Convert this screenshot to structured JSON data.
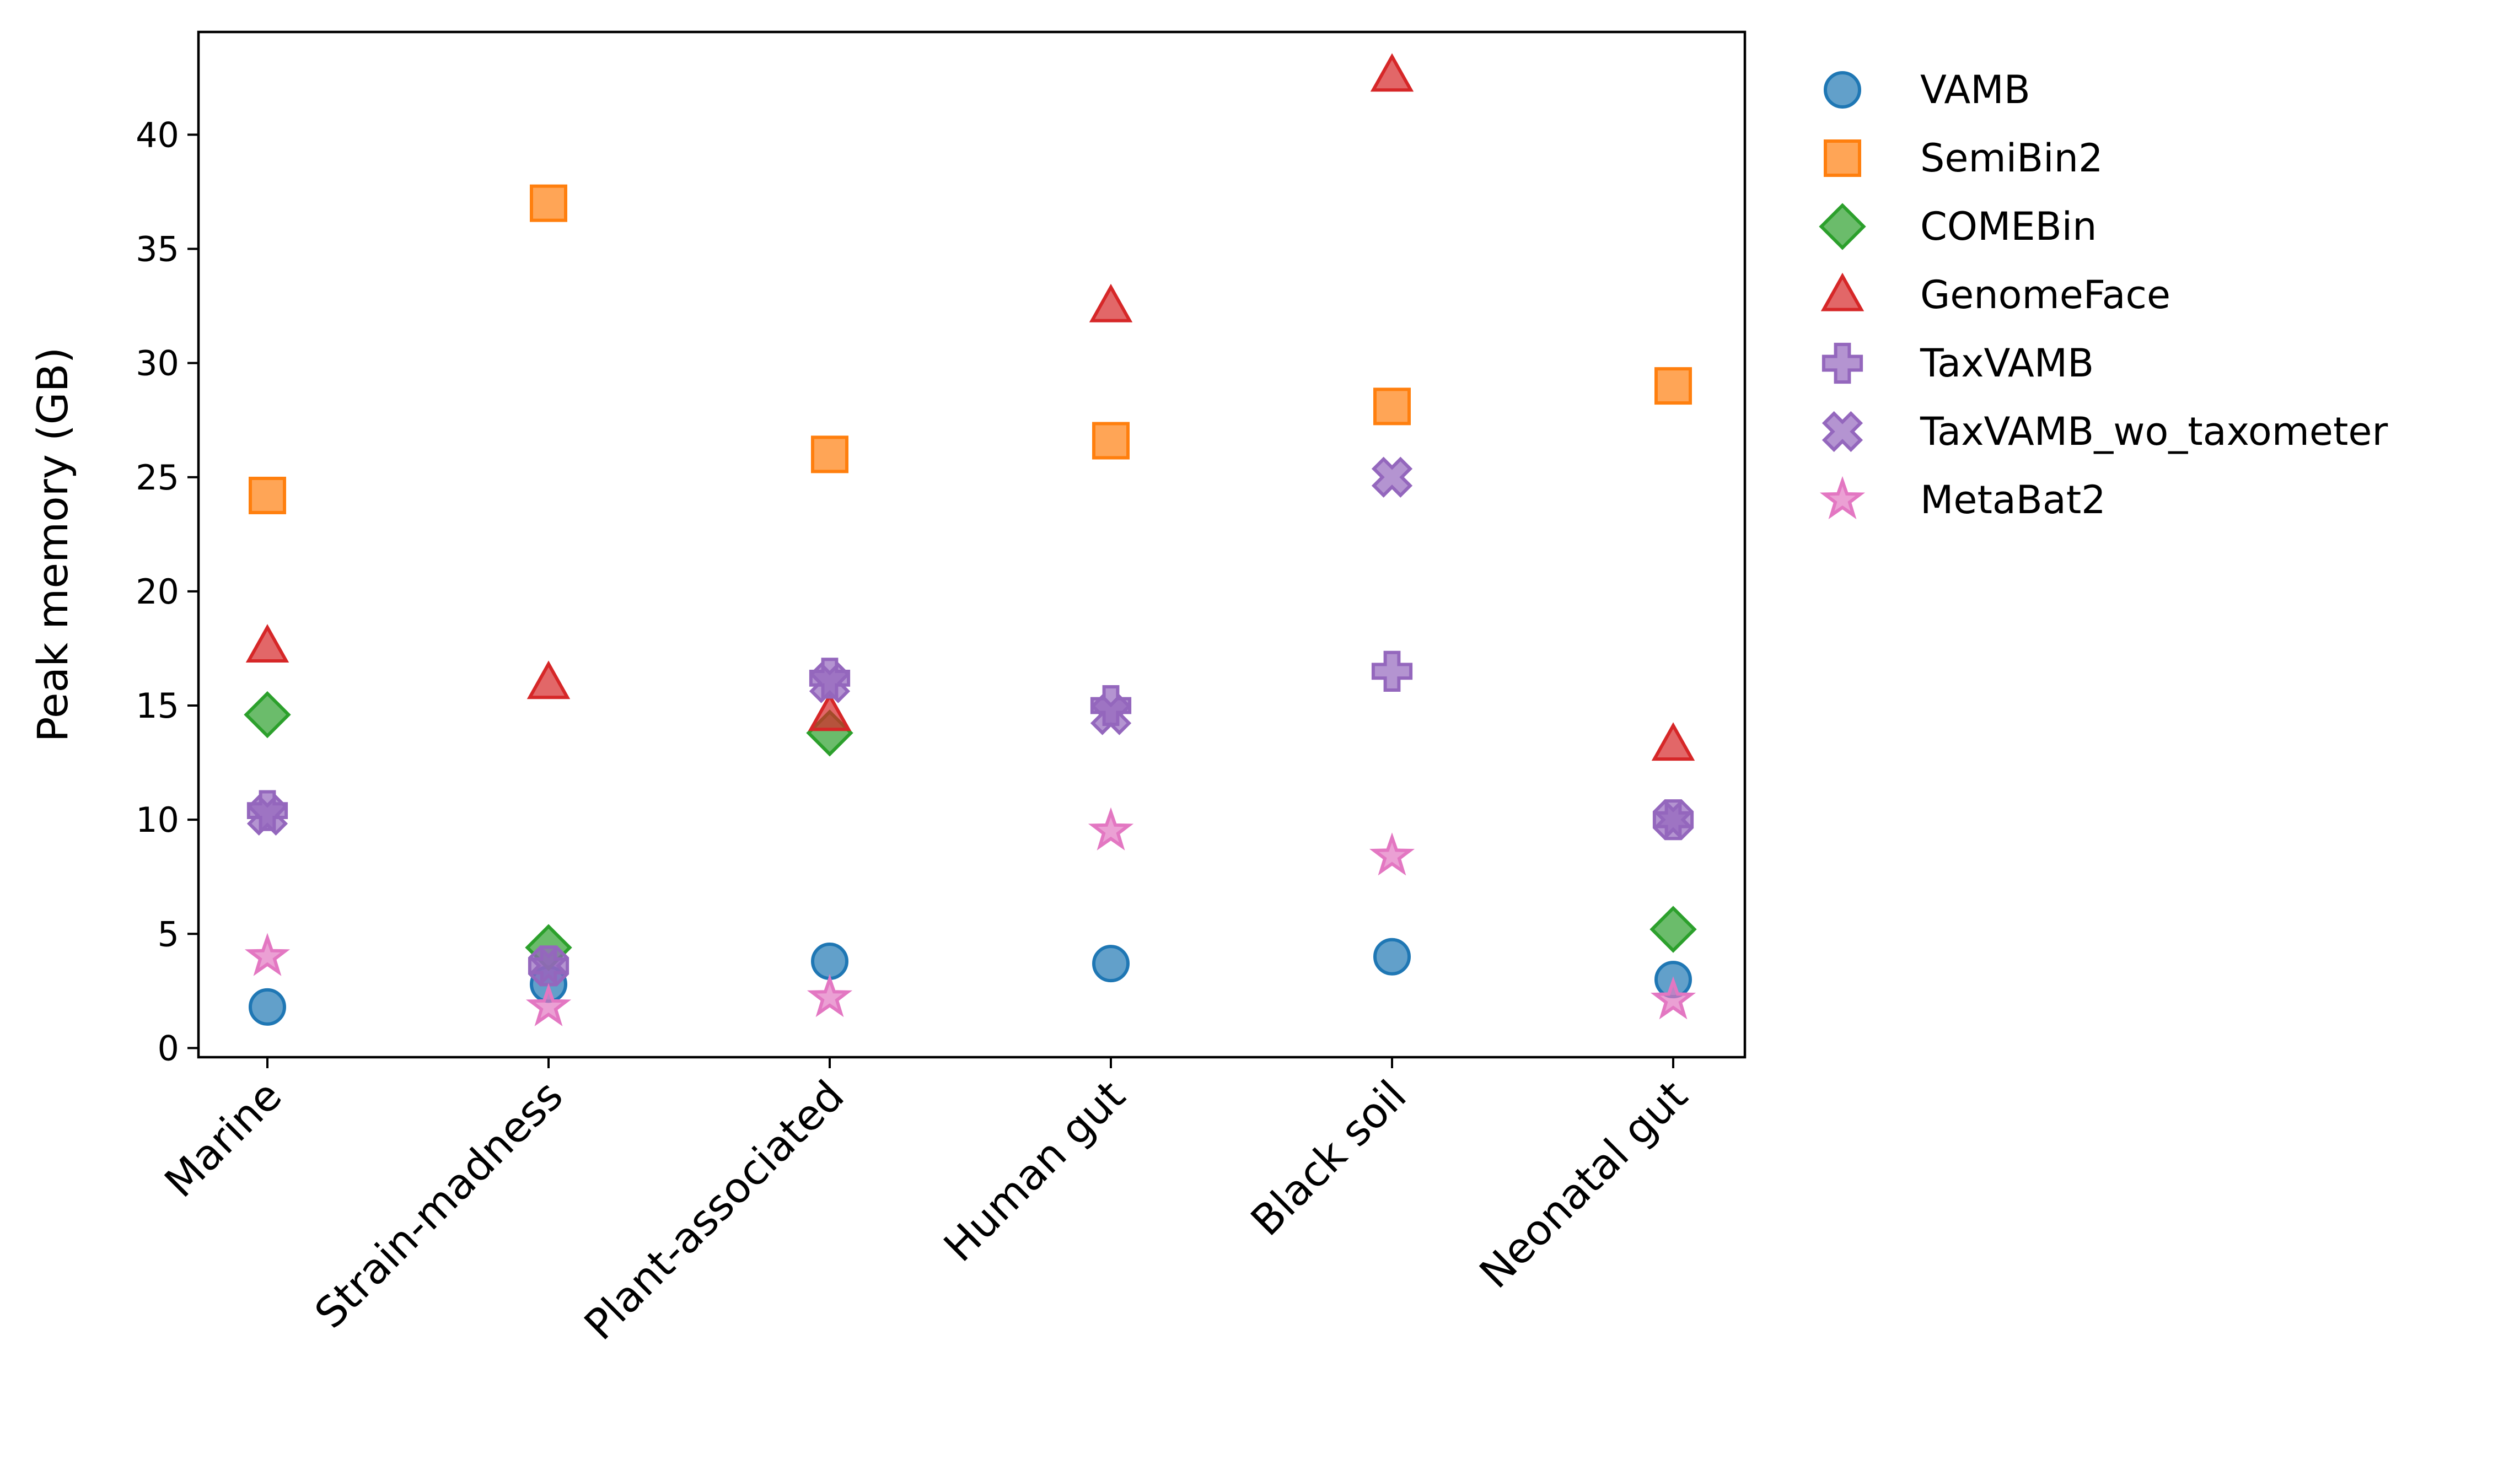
{
  "chart_data": {
    "type": "scatter",
    "title": "",
    "xlabel": "",
    "ylabel": "Peak memory (GB)",
    "categories": [
      "Marine",
      "Strain-madness",
      "Plant-associated",
      "Human gut",
      "Black soil",
      "Neonatal gut"
    ],
    "ylim": [
      -0.4,
      44.5
    ],
    "yticks": [
      0,
      5,
      10,
      15,
      20,
      25,
      30,
      35,
      40
    ],
    "grid": false,
    "legend_position": "outside-right",
    "series": [
      {
        "name": "VAMB",
        "marker": "circle",
        "color": "#1f77b4",
        "values": [
          1.8,
          2.8,
          3.8,
          3.7,
          4.0,
          3.0
        ]
      },
      {
        "name": "SemiBin2",
        "marker": "square",
        "color": "#ff7f0e",
        "values": [
          24.2,
          37.0,
          26.0,
          26.6,
          28.1,
          29.0
        ]
      },
      {
        "name": "COMEBin",
        "marker": "diamond",
        "color": "#2ca02c",
        "values": [
          14.6,
          4.4,
          13.8,
          null,
          null,
          5.2
        ]
      },
      {
        "name": "GenomeFace",
        "marker": "triangle",
        "color": "#d62728",
        "values": [
          17.6,
          16.0,
          14.6,
          32.5,
          42.6,
          13.3
        ]
      },
      {
        "name": "TaxVAMB",
        "marker": "plus",
        "color": "#9467bd",
        "values": [
          10.4,
          3.6,
          16.2,
          15.0,
          16.5,
          10.0
        ]
      },
      {
        "name": "TaxVAMB_wo_taxometer",
        "marker": "x",
        "color": "#9467bd",
        "values": [
          10.2,
          3.6,
          16.0,
          14.6,
          25.0,
          10.0
        ]
      },
      {
        "name": "MetaBat2",
        "marker": "star",
        "color": "#e377c2",
        "values": [
          4.0,
          1.8,
          2.2,
          9.5,
          8.4,
          2.1
        ]
      }
    ]
  }
}
